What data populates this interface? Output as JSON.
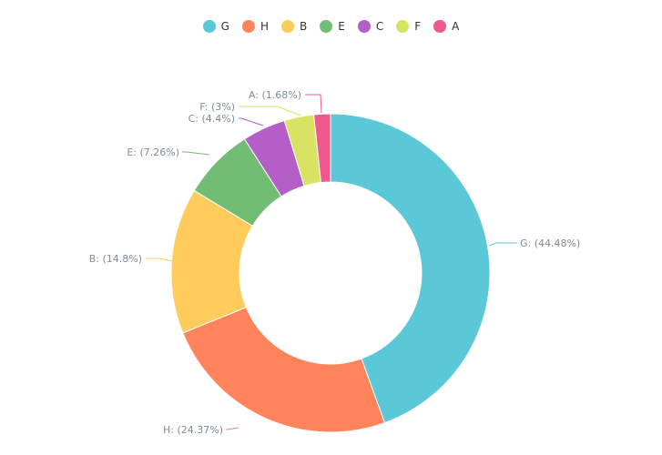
{
  "chart_data": {
    "type": "pie",
    "variant": "donut",
    "legend_position": "top-center",
    "slices": [
      {
        "name": "G",
        "value": 44.48,
        "label": "G: (44.48%)",
        "color": "#5bc8d8"
      },
      {
        "name": "H",
        "value": 24.37,
        "label": "H: (24.37%)",
        "color": "#ff845c"
      },
      {
        "name": "B",
        "value": 14.8,
        "label": "B: (14.8%)",
        "color": "#ffcc5c"
      },
      {
        "name": "E",
        "value": 7.26,
        "label": "E: (7.26%)",
        "color": "#73bc74"
      },
      {
        "name": "C",
        "value": 4.4,
        "label": "C: (4.4%)",
        "color": "#b45ec8"
      },
      {
        "name": "F",
        "value": 3,
        "label": "F: (3%)",
        "color": "#d9e363"
      },
      {
        "name": "A",
        "value": 1.68,
        "label": "A: (1.68%)",
        "color": "#f0588e"
      }
    ]
  }
}
